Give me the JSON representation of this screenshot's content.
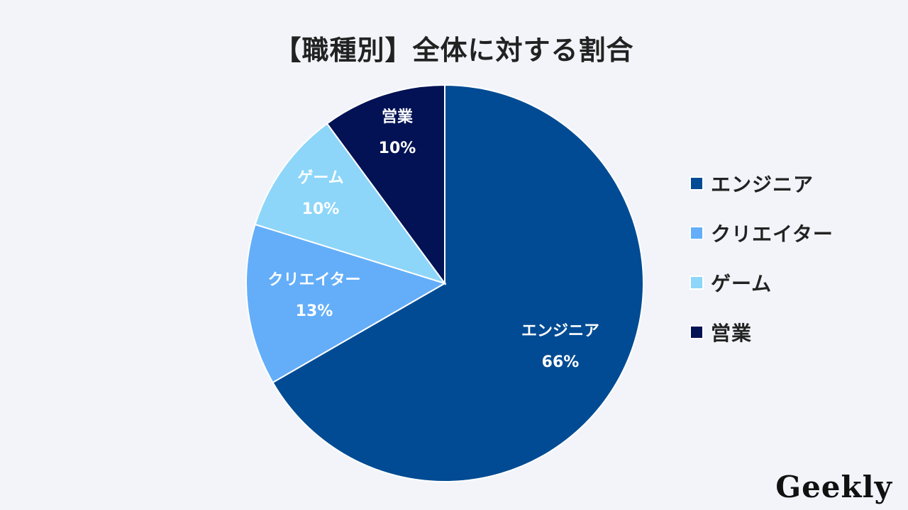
{
  "title": "【職種別】全体に対する割合",
  "logo": "Geekly",
  "chart_data": {
    "type": "pie",
    "title": "【職種別】全体に対する割合",
    "categories": [
      "エンジニア",
      "クリエイター",
      "ゲーム",
      "営業"
    ],
    "values": [
      66,
      13,
      10,
      10
    ],
    "labels": [
      "66%",
      "13%",
      "10%",
      "10%"
    ],
    "colors": [
      "#004b93",
      "#64aef9",
      "#8dd6f9",
      "#021254"
    ],
    "start_angle_deg": 0,
    "direction": "clockwise",
    "legend_position": "right"
  },
  "slices": [
    {
      "name": "エンジニア",
      "pct": "66%",
      "color": "#004b93"
    },
    {
      "name": "クリエイター",
      "pct": "13%",
      "color": "#64aef9"
    },
    {
      "name": "ゲーム",
      "pct": "10%",
      "color": "#8dd6f9"
    },
    {
      "name": "営業",
      "pct": "10%",
      "color": "#021254"
    }
  ],
  "legend": [
    {
      "label": "エンジニア",
      "color": "#004b93"
    },
    {
      "label": "クリエイター",
      "color": "#64aef9"
    },
    {
      "label": "ゲーム",
      "color": "#8dd6f9"
    },
    {
      "label": "営業",
      "color": "#021254"
    }
  ]
}
